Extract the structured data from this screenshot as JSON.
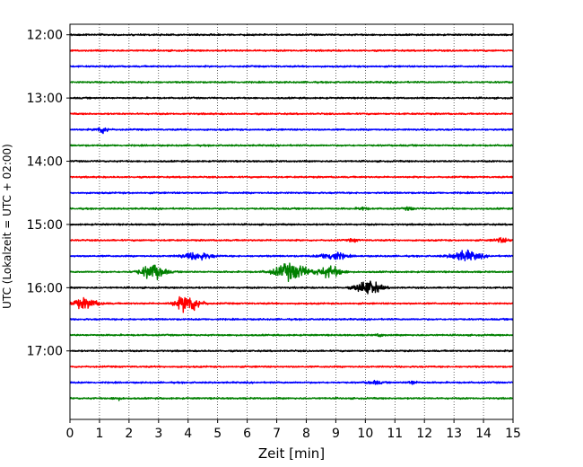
{
  "chart_data": {
    "type": "line",
    "title": "",
    "xlabel": "Zeit  [min]",
    "ylabel": "UTC (Lokalzeit = UTC + 02:00)",
    "xlim": [
      0,
      15
    ],
    "x_ticks": [
      0,
      1,
      2,
      3,
      4,
      5,
      6,
      7,
      8,
      9,
      10,
      11,
      12,
      13,
      14,
      15
    ],
    "x_tick_labels": [
      "0",
      "1",
      "2",
      "3",
      "4",
      "5",
      "6",
      "7",
      "8",
      "9",
      "10",
      "11",
      "12",
      "13",
      "14",
      "15"
    ],
    "y_range": [
      "11:50",
      "18:05"
    ],
    "y_ticks": [
      "12:00",
      "13:00",
      "14:00",
      "15:00",
      "16:00",
      "17:00"
    ],
    "grid_x": "dotted vertical at each minute",
    "color_cycle": [
      "#000000",
      "#ff0000",
      "#0000ff",
      "#008000"
    ],
    "trace_interval_minutes": 15,
    "traces": [
      {
        "start": "12:00",
        "color": "#000000",
        "events": []
      },
      {
        "start": "12:15",
        "color": "#ff0000",
        "events": []
      },
      {
        "start": "12:30",
        "color": "#0000ff",
        "events": []
      },
      {
        "start": "12:45",
        "color": "#008000",
        "events": []
      },
      {
        "start": "13:00",
        "color": "#000000",
        "events": []
      },
      {
        "start": "13:15",
        "color": "#ff0000",
        "events": []
      },
      {
        "start": "13:30",
        "color": "#0000ff",
        "events": [
          {
            "t": 1.1,
            "amp": 0.35,
            "dur": 0.5
          }
        ]
      },
      {
        "start": "13:45",
        "color": "#008000",
        "events": []
      },
      {
        "start": "14:00",
        "color": "#000000",
        "events": []
      },
      {
        "start": "14:15",
        "color": "#ff0000",
        "events": []
      },
      {
        "start": "14:30",
        "color": "#0000ff",
        "events": []
      },
      {
        "start": "14:45",
        "color": "#008000",
        "events": [
          {
            "t": 9.9,
            "amp": 0.15,
            "dur": 0.4
          },
          {
            "t": 11.5,
            "amp": 0.15,
            "dur": 0.4
          }
        ]
      },
      {
        "start": "15:00",
        "color": "#000000",
        "events": []
      },
      {
        "start": "15:15",
        "color": "#ff0000",
        "events": [
          {
            "t": 9.6,
            "amp": 0.15,
            "dur": 0.4
          },
          {
            "t": 14.6,
            "amp": 0.22,
            "dur": 0.6
          }
        ]
      },
      {
        "start": "15:30",
        "color": "#0000ff",
        "events": [
          {
            "t": 4.3,
            "amp": 0.38,
            "dur": 1.2
          },
          {
            "t": 8.9,
            "amp": 0.42,
            "dur": 1.0
          },
          {
            "t": 13.4,
            "amp": 0.52,
            "dur": 1.2
          }
        ]
      },
      {
        "start": "15:45",
        "color": "#008000",
        "events": [
          {
            "t": 2.8,
            "amp": 0.75,
            "dur": 1.0
          },
          {
            "t": 7.5,
            "amp": 0.85,
            "dur": 1.4
          },
          {
            "t": 8.8,
            "amp": 0.55,
            "dur": 1.0
          }
        ]
      },
      {
        "start": "16:00",
        "color": "#000000",
        "events": [
          {
            "t": 10.1,
            "amp": 0.75,
            "dur": 1.0
          }
        ]
      },
      {
        "start": "16:15",
        "color": "#ff0000",
        "events": [
          {
            "t": 0.5,
            "amp": 0.5,
            "dur": 1.1
          },
          {
            "t": 4.0,
            "amp": 0.9,
            "dur": 1.0
          }
        ]
      },
      {
        "start": "16:30",
        "color": "#0000ff",
        "events": []
      },
      {
        "start": "16:45",
        "color": "#008000",
        "events": [
          {
            "t": 10.5,
            "amp": 0.15,
            "dur": 0.3
          }
        ]
      },
      {
        "start": "17:00",
        "color": "#000000",
        "events": []
      },
      {
        "start": "17:15",
        "color": "#ff0000",
        "events": []
      },
      {
        "start": "17:30",
        "color": "#0000ff",
        "events": [
          {
            "t": 10.3,
            "amp": 0.15,
            "dur": 0.6
          },
          {
            "t": 11.6,
            "amp": 0.18,
            "dur": 0.4
          }
        ]
      },
      {
        "start": "17:45",
        "color": "#008000",
        "events": [
          {
            "t": 1.6,
            "amp": 0.12,
            "dur": 0.4
          }
        ]
      }
    ]
  }
}
